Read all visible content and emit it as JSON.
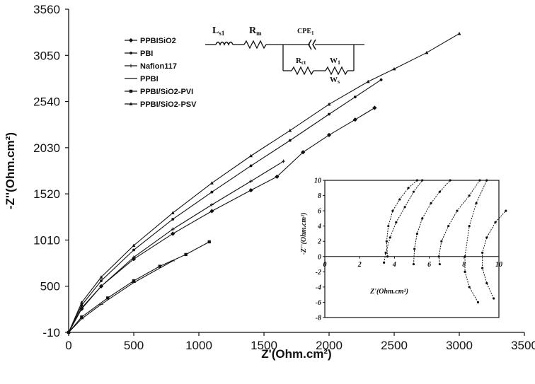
{
  "chart_data": [
    {
      "type": "line",
      "xlabel": "Z'(Ohm.cm²)",
      "ylabel": "-Z''(Ohm.cm²)",
      "xlim": [
        0,
        3500
      ],
      "ylim": [
        -10,
        3560
      ],
      "x_ticks": [
        "0",
        "500",
        "1000",
        "1500",
        "2000",
        "2500",
        "3000",
        "3500"
      ],
      "y_ticks": [
        "-10",
        "500",
        "1010",
        "1520",
        "2030",
        "2540",
        "3050",
        "3560"
      ],
      "legend_position": "top-left",
      "grid": false,
      "series": [
        {
          "name": "PPBISiO2",
          "marker": "diamond",
          "x": [
            0,
            100,
            250,
            500,
            800,
            1100,
            1400,
            1600,
            1800,
            2000,
            2200,
            2350
          ],
          "y": [
            -10,
            250,
            500,
            800,
            1080,
            1330,
            1560,
            1710,
            1980,
            2170,
            2340,
            2470
          ]
        },
        {
          "name": "PBI",
          "marker": "dot",
          "x": [
            0,
            100,
            250,
            500,
            800,
            1100,
            1400,
            1700,
            2000,
            2200,
            2400
          ],
          "y": [
            -10,
            290,
            560,
            900,
            1240,
            1540,
            1830,
            2110,
            2400,
            2590,
            2780
          ]
        },
        {
          "name": "Nafion117",
          "marker": "plus",
          "x": [
            0,
            100,
            250,
            500,
            800,
            1100,
            1400,
            1650
          ],
          "y": [
            -10,
            260,
            500,
            820,
            1130,
            1400,
            1660,
            1880
          ]
        },
        {
          "name": "PPBI",
          "marker": "dash",
          "x": [
            0,
            100,
            250,
            500,
            800
          ],
          "y": [
            -10,
            140,
            300,
            540,
            780
          ]
        },
        {
          "name": "PPBI/SiO2-PVI",
          "marker": "square",
          "x": [
            0,
            100,
            300,
            500,
            700,
            900,
            1080
          ],
          "y": [
            -10,
            160,
            370,
            560,
            720,
            850,
            990
          ]
        },
        {
          "name": "PPBI/SiO2-PSV",
          "marker": "triangle",
          "x": [
            0,
            100,
            250,
            500,
            800,
            1100,
            1400,
            1700,
            2000,
            2300,
            2500,
            2750,
            3000
          ],
          "y": [
            -10,
            320,
            600,
            950,
            1310,
            1640,
            1940,
            2220,
            2510,
            2760,
            2900,
            3080,
            3290
          ]
        }
      ]
    },
    {
      "type": "line",
      "xlabel": "Z'(Ohm.cm²)",
      "ylabel": "-Z''(Ohm.cm²)",
      "xlim": [
        0,
        10
      ],
      "ylim": [
        -8,
        10
      ],
      "x_ticks": [
        "0",
        "2",
        "4",
        "6",
        "8",
        "10"
      ],
      "y_ticks": [
        "10",
        "8",
        "6",
        "4",
        "2",
        "0",
        "-2",
        "-4",
        "-6",
        "-8"
      ],
      "series": [
        {
          "x": [
            3.6,
            3.55,
            3.65,
            3.9,
            4.3,
            4.8,
            5.3
          ],
          "y": [
            0,
            2,
            4,
            6,
            7.5,
            9,
            10
          ]
        },
        {
          "x": [
            3.4,
            3.5,
            3.75,
            4.1,
            4.6,
            5.1,
            5.6
          ],
          "y": [
            -0.8,
            0.5,
            2.5,
            4.5,
            6.5,
            8.5,
            10
          ]
        },
        {
          "x": [
            5.1,
            5.15,
            5.3,
            5.6,
            6.1,
            6.6,
            7.2
          ],
          "y": [
            -1,
            1,
            3,
            5,
            7,
            8.5,
            10
          ]
        },
        {
          "x": [
            6.6,
            6.55,
            6.7,
            7.1,
            7.6,
            8.3,
            8.9
          ],
          "y": [
            -1,
            0,
            2,
            4,
            6,
            8,
            10
          ]
        },
        {
          "x": [
            8.8,
            8.3,
            8.05,
            8.05,
            8.3,
            8.7,
            9.3
          ],
          "y": [
            -6,
            -4,
            -2,
            0,
            4,
            7,
            10
          ]
        },
        {
          "x": [
            9.7,
            9.3,
            9.05,
            9.05,
            9.3,
            9.8,
            10.4
          ],
          "y": [
            -5.5,
            -3.5,
            -1.5,
            0.5,
            2.5,
            4.5,
            6
          ]
        }
      ]
    }
  ],
  "circuit": {
    "l": {
      "main": "L",
      "sub": "s1"
    },
    "rm": {
      "main": "R",
      "sub": "m"
    },
    "cpe": {
      "main": "CPE",
      "sub": "1"
    },
    "rct": {
      "main": "R",
      "sub": "ct"
    },
    "w1": {
      "main": "W",
      "sub": "1"
    },
    "ws": {
      "main": "W",
      "sub": "s"
    }
  }
}
